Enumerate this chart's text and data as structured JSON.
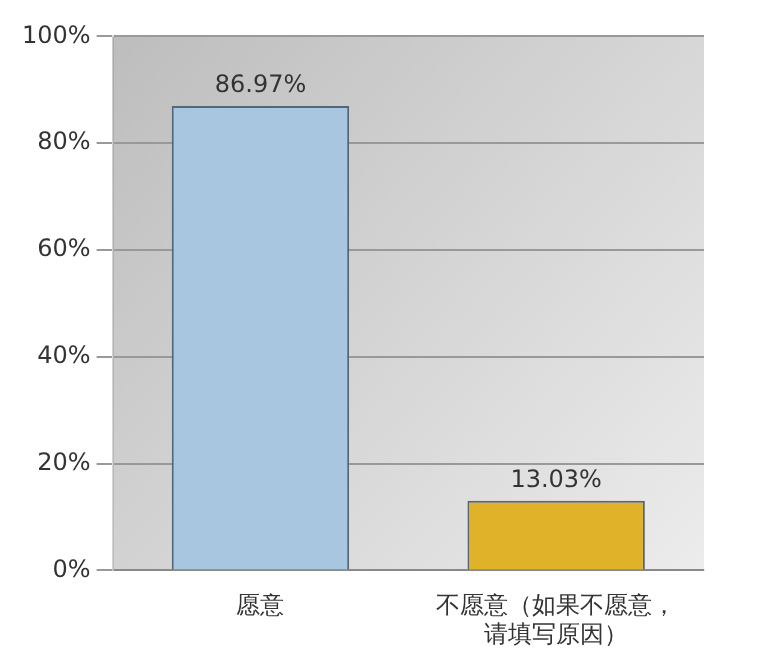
{
  "chart_data": {
    "type": "bar",
    "categories": [
      "愿意",
      "不愿意（如果不愿意，请填写原因）"
    ],
    "values": [
      86.97,
      13.03
    ],
    "colors": [
      "#a9c6e0",
      "#e0b22a"
    ],
    "value_labels": [
      "86.97%",
      "13.03%"
    ],
    "ylim": [
      0,
      100
    ],
    "yticks": [
      {
        "value": 0,
        "label": "0%"
      },
      {
        "value": 20,
        "label": "20%"
      },
      {
        "value": 40,
        "label": "40%"
      },
      {
        "value": 60,
        "label": "60%"
      },
      {
        "value": 80,
        "label": "80%"
      },
      {
        "value": 100,
        "label": "100%"
      }
    ],
    "grid": "y",
    "legend": false
  }
}
